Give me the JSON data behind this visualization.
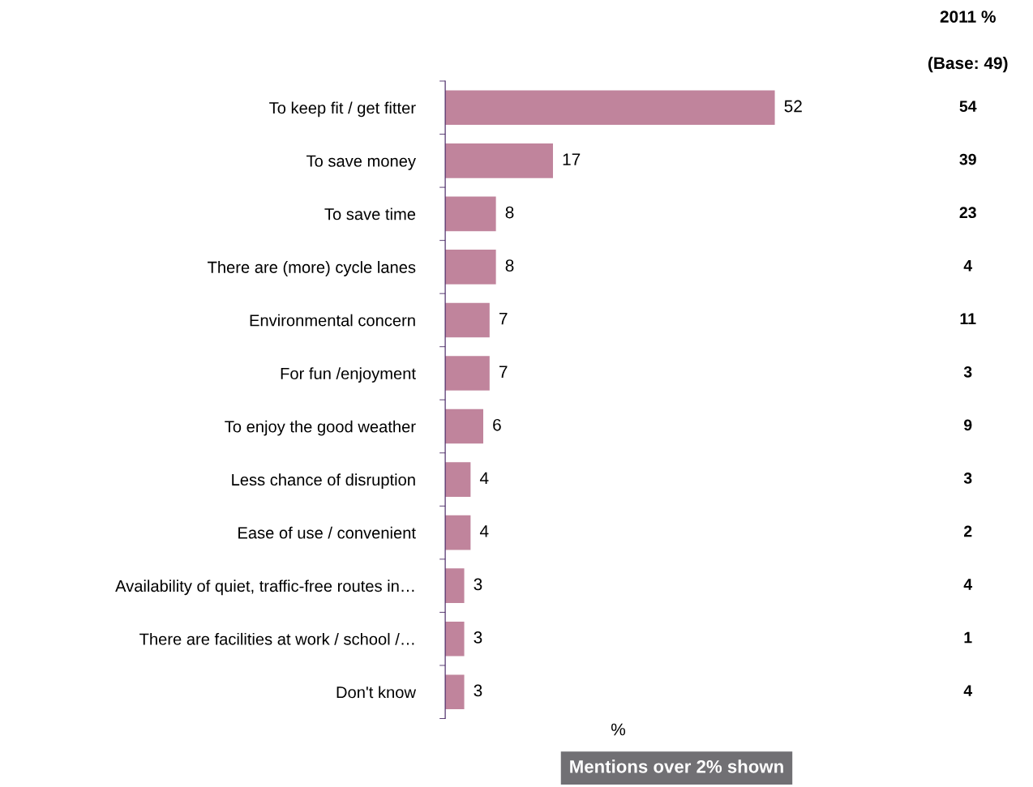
{
  "chart_data": {
    "type": "bar",
    "orientation": "horizontal",
    "xlabel": "%",
    "categories": [
      "To keep fit / get fitter",
      "To save money",
      "To save time",
      "There are (more) cycle lanes",
      "Environmental concern",
      "For fun /enjoyment",
      "To enjoy the good weather",
      "Less chance of disruption",
      "Ease of use / convenient",
      "Availability of quiet, traffic-free routes in…",
      "There are facilities at work / school /…",
      "Don't know"
    ],
    "values": [
      52,
      17,
      8,
      8,
      7,
      7,
      6,
      4,
      4,
      3,
      3,
      3
    ],
    "color": "#c0849c",
    "data_labels": true,
    "tick_labels": "y",
    "grid": false,
    "legend": false,
    "annotations": [
      "2011 %",
      "(Base: 49)",
      "54",
      "39",
      "23",
      "4",
      "11",
      "3",
      "9",
      "3",
      "2",
      "4",
      "1",
      "4",
      "Mentions over 2% shown"
    ]
  }
}
